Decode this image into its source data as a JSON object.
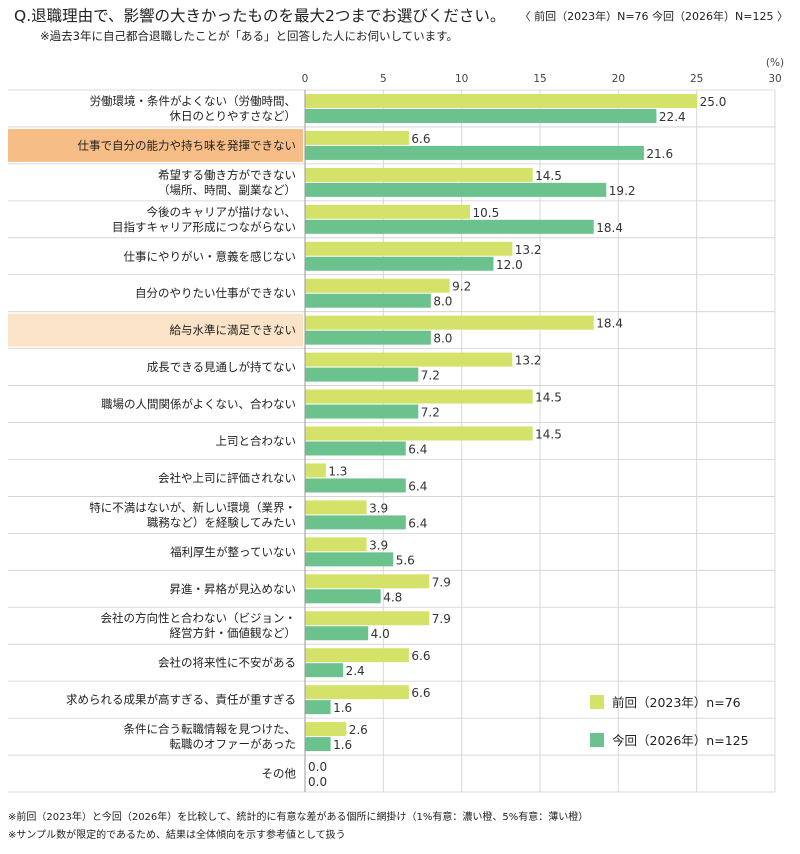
{
  "title": "Q.退職理由で、影響の大きかったものを最大2つまでお選びください。",
  "sample_note": "〈 前回（2023年）N=76 今回（2026年）N=125 〉",
  "subtitle": "※過去3年に自己都合退職したことが「ある」と回答した人にお伺いしています。",
  "footnotes": [
    "※前回（2023年）と今回（2026年）を比較して、統計的に有意な差がある個所に網掛け（1%有意：濃い橙、5%有意：薄い橙）",
    "※サンプル数が限定的であるため、結果は全体傾向を示す参考値として扱う"
  ],
  "chart_data": {
    "type": "bar",
    "orientation": "horizontal",
    "unit": "(%)",
    "xlim": [
      0,
      30
    ],
    "xticks": [
      0,
      5,
      10,
      15,
      20,
      25,
      30
    ],
    "grid": true,
    "legend_position": "bottom-right",
    "categories": [
      [
        "労働環境・条件がよくない（労働時間、",
        "休日のとりやすさなど）"
      ],
      [
        "仕事で自分の能力や持ち味を発揮できない"
      ],
      [
        "希望する働き方ができない",
        "（場所、時間、副業など）"
      ],
      [
        "今後のキャリアが描けない、",
        "目指すキャリア形成につながらない"
      ],
      [
        "仕事にやりがい・意義を感じない"
      ],
      [
        "自分のやりたい仕事ができない"
      ],
      [
        "給与水準に満足できない"
      ],
      [
        "成長できる見通しが持てない"
      ],
      [
        "職場の人間関係がよくない、合わない"
      ],
      [
        "上司と合わない"
      ],
      [
        "会社や上司に評価されない"
      ],
      [
        "特に不満はないが、新しい環境（業界・",
        "職務など）を経験してみたい"
      ],
      [
        "福利厚生が整っていない"
      ],
      [
        "昇進・昇格が見込めない"
      ],
      [
        "会社の方向性と合わない（ビジョン・",
        "経営方針・価値観など）"
      ],
      [
        "会社の将来性に不安がある"
      ],
      [
        "求められる成果が高すぎる、責任が重すぎる"
      ],
      [
        "条件に合う転職情報を見つけた、",
        "転職のオファーがあった"
      ],
      [
        "その他"
      ]
    ],
    "highlight": [
      "none",
      "strong",
      "none",
      "none",
      "none",
      "none",
      "light",
      "none",
      "none",
      "none",
      "none",
      "none",
      "none",
      "none",
      "none",
      "none",
      "none",
      "none",
      "none"
    ],
    "series": [
      {
        "name": "前回（2023年）n=76",
        "color": "#d4e26a",
        "values": [
          25.0,
          6.6,
          14.5,
          10.5,
          13.2,
          9.2,
          18.4,
          13.2,
          14.5,
          14.5,
          1.3,
          3.9,
          3.9,
          7.9,
          7.9,
          6.6,
          6.6,
          2.6,
          0.0
        ]
      },
      {
        "name": "今回（2026年）n=125",
        "color": "#6cc28d",
        "values": [
          22.4,
          21.6,
          19.2,
          18.4,
          12.0,
          8.0,
          8.0,
          7.2,
          7.2,
          6.4,
          6.4,
          6.4,
          5.6,
          4.8,
          4.0,
          2.4,
          1.6,
          1.6,
          0.0
        ]
      }
    ],
    "colors": {
      "highlight_strong": "#f7bd86",
      "highlight_light": "#fbe3c8",
      "grid": "#d9d9d9",
      "separator": "#cfcfcf"
    }
  }
}
